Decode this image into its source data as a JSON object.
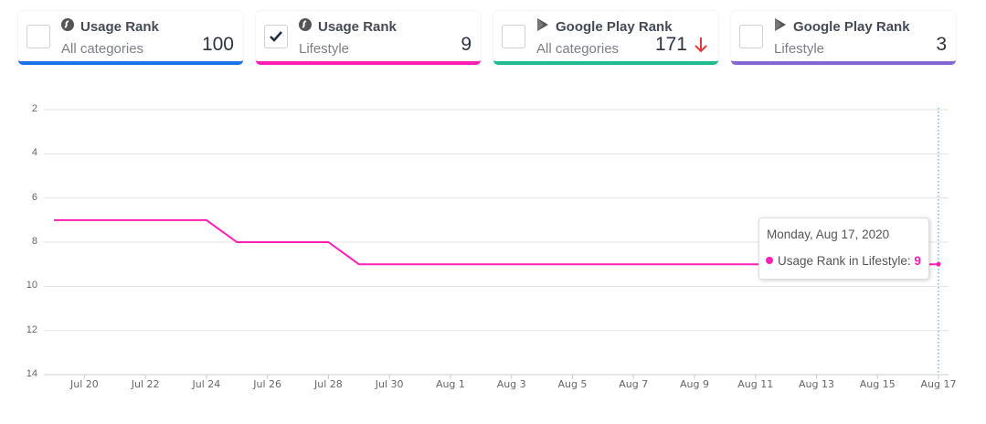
{
  "cards": [
    {
      "title": "Usage Rank",
      "subtitle": "All categories",
      "value": "100",
      "checked": false,
      "color": "#1a73e8",
      "icon": "usage-icon"
    },
    {
      "title": "Usage Rank",
      "subtitle": "Lifestyle",
      "value": "9",
      "checked": true,
      "color": "#ff1fb5",
      "icon": "usage-icon"
    },
    {
      "title": "Google Play Rank",
      "subtitle": "All categories",
      "value": "171",
      "checked": false,
      "color": "#1ebc8e",
      "icon": "google-play-icon",
      "trend": "down",
      "trend_color": "#e53935"
    },
    {
      "title": "Google Play Rank",
      "subtitle": "Lifestyle",
      "value": "3",
      "checked": false,
      "color": "#8466d4",
      "icon": "google-play-icon"
    }
  ],
  "tooltip": {
    "date": "Monday, Aug 17, 2020",
    "label": "Usage Rank in Lifestyle: ",
    "value": "9"
  },
  "chart_data": {
    "type": "line",
    "title": "",
    "xlabel": "",
    "ylabel": "",
    "y_inverted": true,
    "ylim": [
      2,
      14
    ],
    "yticks": [
      "2",
      "4",
      "6",
      "8",
      "10",
      "12",
      "14"
    ],
    "xticks": [
      "Jul 20",
      "Jul 22",
      "Jul 24",
      "Jul 26",
      "Jul 28",
      "Jul 30",
      "Aug 1",
      "Aug 3",
      "Aug 5",
      "Aug 7",
      "Aug 9",
      "Aug 11",
      "Aug 13",
      "Aug 15",
      "Aug 17"
    ],
    "grid": true,
    "legend": "none",
    "series": [
      {
        "name": "Usage Rank in Lifestyle",
        "color": "#ff1fb5",
        "x": [
          "Jul 19",
          "Jul 20",
          "Jul 21",
          "Jul 22",
          "Jul 23",
          "Jul 24",
          "Jul 25",
          "Jul 26",
          "Jul 27",
          "Jul 28",
          "Jul 29",
          "Jul 30",
          "Jul 31",
          "Aug 1",
          "Aug 2",
          "Aug 3",
          "Aug 4",
          "Aug 5",
          "Aug 6",
          "Aug 7",
          "Aug 8",
          "Aug 9",
          "Aug 10",
          "Aug 11",
          "Aug 12",
          "Aug 13",
          "Aug 14",
          "Aug 15",
          "Aug 16",
          "Aug 17"
        ],
        "values": [
          7,
          7,
          7,
          7,
          7,
          7,
          8,
          8,
          8,
          8,
          9,
          9,
          9,
          9,
          9,
          9,
          9,
          9,
          9,
          9,
          9,
          9,
          9,
          9,
          9,
          9,
          9,
          9,
          9,
          9
        ]
      }
    ]
  }
}
